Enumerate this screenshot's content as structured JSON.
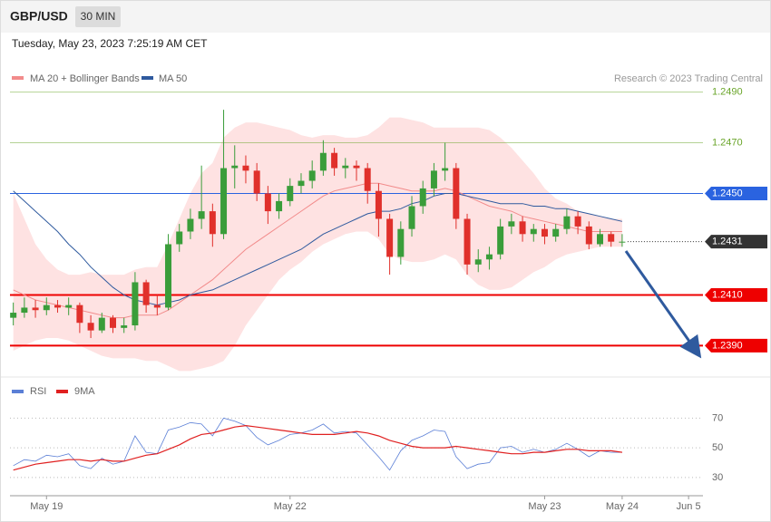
{
  "header": {
    "symbol": "GBP/USD",
    "interval": "30 MIN",
    "timestamp": "Tuesday, May 23, 2023 7:25:19 AM CET"
  },
  "chart_data": [
    {
      "type": "candlestick",
      "credit": "Research © 2023 Trading Central",
      "up_color": "#3a9d3a",
      "down_color": "#e0302b",
      "ylim": [
        1.2378,
        1.2512
      ],
      "candles": [
        [
          1.2401,
          1.2407,
          1.2398,
          1.2403
        ],
        [
          1.2403,
          1.2409,
          1.2401,
          1.2405
        ],
        [
          1.2405,
          1.2408,
          1.2401,
          1.2404
        ],
        [
          1.2404,
          1.2409,
          1.2402,
          1.2406
        ],
        [
          1.2406,
          1.2408,
          1.2403,
          1.2405
        ],
        [
          1.2405,
          1.2409,
          1.2402,
          1.2406
        ],
        [
          1.2406,
          1.2407,
          1.2395,
          1.2399
        ],
        [
          1.2399,
          1.2402,
          1.2393,
          1.2396
        ],
        [
          1.2396,
          1.2403,
          1.2395,
          1.2401
        ],
        [
          1.2401,
          1.2402,
          1.2395,
          1.2397
        ],
        [
          1.2397,
          1.2401,
          1.2395,
          1.2398
        ],
        [
          1.2398,
          1.2419,
          1.2396,
          1.2415
        ],
        [
          1.2415,
          1.2416,
          1.2403,
          1.2406
        ],
        [
          1.2406,
          1.241,
          1.2402,
          1.2405
        ],
        [
          1.2405,
          1.2434,
          1.2404,
          1.243
        ],
        [
          1.243,
          1.2438,
          1.2427,
          1.2435
        ],
        [
          1.2435,
          1.2444,
          1.2432,
          1.244
        ],
        [
          1.244,
          1.2461,
          1.2436,
          1.2443
        ],
        [
          1.2443,
          1.2446,
          1.2429,
          1.2434
        ],
        [
          1.2434,
          1.2483,
          1.2432,
          1.246
        ],
        [
          1.246,
          1.2469,
          1.2452,
          1.2461
        ],
        [
          1.2461,
          1.2465,
          1.2454,
          1.2459
        ],
        [
          1.2459,
          1.2462,
          1.2447,
          1.245
        ],
        [
          1.245,
          1.2453,
          1.2438,
          1.2443
        ],
        [
          1.2443,
          1.245,
          1.244,
          1.2447
        ],
        [
          1.2447,
          1.2456,
          1.2445,
          1.2453
        ],
        [
          1.2453,
          1.2458,
          1.245,
          1.2455
        ],
        [
          1.2455,
          1.2463,
          1.2452,
          1.2459
        ],
        [
          1.2459,
          1.2471,
          1.2457,
          1.2466
        ],
        [
          1.2466,
          1.2468,
          1.2457,
          1.246
        ],
        [
          1.246,
          1.2464,
          1.2456,
          1.2461
        ],
        [
          1.2461,
          1.2463,
          1.2455,
          1.246
        ],
        [
          1.246,
          1.2462,
          1.2446,
          1.2451
        ],
        [
          1.2451,
          1.2454,
          1.2433,
          1.244
        ],
        [
          1.244,
          1.2442,
          1.2418,
          1.2425
        ],
        [
          1.2425,
          1.2439,
          1.2422,
          1.2436
        ],
        [
          1.2436,
          1.2449,
          1.2433,
          1.2445
        ],
        [
          1.2445,
          1.2455,
          1.2442,
          1.2452
        ],
        [
          1.2452,
          1.2462,
          1.2449,
          1.2459
        ],
        [
          1.2459,
          1.247,
          1.2455,
          1.246
        ],
        [
          1.246,
          1.2462,
          1.2436,
          1.244
        ],
        [
          1.244,
          1.2442,
          1.2418,
          1.2422
        ],
        [
          1.2422,
          1.2428,
          1.2419,
          1.2424
        ],
        [
          1.2424,
          1.2429,
          1.242,
          1.2426
        ],
        [
          1.2426,
          1.244,
          1.2424,
          1.2437
        ],
        [
          1.2437,
          1.2442,
          1.2434,
          1.2439
        ],
        [
          1.2439,
          1.2441,
          1.2431,
          1.2434
        ],
        [
          1.2434,
          1.2438,
          1.2431,
          1.2436
        ],
        [
          1.2436,
          1.2438,
          1.243,
          1.2433
        ],
        [
          1.2433,
          1.2438,
          1.2431,
          1.2436
        ],
        [
          1.2436,
          1.2444,
          1.2434,
          1.2441
        ],
        [
          1.2441,
          1.2443,
          1.2434,
          1.2437
        ],
        [
          1.2437,
          1.2439,
          1.2428,
          1.243
        ],
        [
          1.243,
          1.2436,
          1.2429,
          1.2434
        ],
        [
          1.2434,
          1.2435,
          1.2429,
          1.2431
        ],
        [
          1.2431,
          1.2434,
          1.2429,
          1.2431
        ]
      ],
      "series": [
        {
          "name": "MA 20 + Bollinger Bands",
          "color": "#f28b8b",
          "values": [
            1.2412,
            1.241,
            1.2408,
            1.2407,
            1.2406,
            1.2405,
            1.2404,
            1.2403,
            1.2402,
            1.2401,
            1.2401,
            1.2402,
            1.2402,
            1.2402,
            1.2404,
            1.2407,
            1.241,
            1.2413,
            1.2416,
            1.242,
            1.2424,
            1.2428,
            1.2431,
            1.2434,
            1.2437,
            1.244,
            1.2443,
            1.2446,
            1.2449,
            1.2451,
            1.2452,
            1.2453,
            1.2454,
            1.2454,
            1.2453,
            1.2452,
            1.2451,
            1.2451,
            1.2451,
            1.2452,
            1.2451,
            1.2449,
            1.2447,
            1.2445,
            1.2444,
            1.2443,
            1.2441,
            1.244,
            1.2439,
            1.2438,
            1.2437,
            1.2436,
            1.2435,
            1.2435,
            1.2435,
            1.2435
          ]
        },
        {
          "name": "MA 50",
          "color": "#2f5a9e",
          "values": [
            1.2451,
            1.2447,
            1.2443,
            1.2439,
            1.2435,
            1.243,
            1.2426,
            1.2421,
            1.2417,
            1.2413,
            1.241,
            1.2408,
            1.2407,
            1.2406,
            1.2407,
            1.2408,
            1.241,
            1.2411,
            1.2412,
            1.2414,
            1.2416,
            1.2418,
            1.242,
            1.2422,
            1.2424,
            1.2426,
            1.2428,
            1.2431,
            1.2434,
            1.2436,
            1.2438,
            1.244,
            1.2442,
            1.2443,
            1.2443,
            1.2444,
            1.2446,
            1.2447,
            1.2449,
            1.245,
            1.245,
            1.2449,
            1.2448,
            1.2447,
            1.2446,
            1.2446,
            1.2446,
            1.2445,
            1.2445,
            1.2444,
            1.2444,
            1.2443,
            1.2442,
            1.2441,
            1.244,
            1.2439
          ]
        }
      ],
      "bands": {
        "color": "#fdd8d8",
        "upper": [
          1.245,
          1.244,
          1.243,
          1.2424,
          1.242,
          1.2418,
          1.2418,
          1.2419,
          1.2418,
          1.2418,
          1.2418,
          1.242,
          1.2421,
          1.2421,
          1.243,
          1.244,
          1.245,
          1.2458,
          1.2462,
          1.2472,
          1.2476,
          1.2478,
          1.2478,
          1.2477,
          1.2476,
          1.2475,
          1.2473,
          1.2472,
          1.2473,
          1.2473,
          1.2472,
          1.2472,
          1.2473,
          1.2476,
          1.248,
          1.248,
          1.2479,
          1.2478,
          1.2476,
          1.2476,
          1.2476,
          1.2476,
          1.2476,
          1.2475,
          1.2472,
          1.2468,
          1.2463,
          1.2458,
          1.2452,
          1.2448,
          1.2446,
          1.2443,
          1.2442,
          1.2441,
          1.244,
          1.244
        ],
        "lower": [
          1.2388,
          1.239,
          1.2392,
          1.2393,
          1.2393,
          1.2392,
          1.239,
          1.2388,
          1.2386,
          1.2385,
          1.2385,
          1.2385,
          1.2384,
          1.2384,
          1.2382,
          1.238,
          1.238,
          1.2381,
          1.2382,
          1.2384,
          1.239,
          1.2398,
          1.2404,
          1.241,
          1.2416,
          1.242,
          1.2423,
          1.2427,
          1.243,
          1.2432,
          1.2434,
          1.2435,
          1.2435,
          1.2432,
          1.2426,
          1.2424,
          1.2423,
          1.2423,
          1.2424,
          1.2426,
          1.2424,
          1.2418,
          1.2414,
          1.2412,
          1.2412,
          1.2413,
          1.2416,
          1.2419,
          1.2421,
          1.2424,
          1.2426,
          1.2427,
          1.2428,
          1.2429,
          1.2429,
          1.2429
        ]
      },
      "levels": [
        {
          "value": 1.249,
          "label": "1.2490",
          "color": "#6aa52a",
          "line": "thin",
          "box": false
        },
        {
          "value": 1.247,
          "label": "1.2470",
          "color": "#6aa52a",
          "line": "thin",
          "box": false
        },
        {
          "value": 1.245,
          "label": "1.2450",
          "color": "#2a63e0",
          "line": "thin",
          "box": true
        },
        {
          "value": 1.2431,
          "label": "1.2431",
          "color": "#333333",
          "line": "dotted",
          "box": true
        },
        {
          "value": 1.241,
          "label": "1.2410",
          "color": "#ee0000",
          "line": "thick",
          "box": true
        },
        {
          "value": 1.239,
          "label": "1.2390",
          "color": "#ee0000",
          "line": "thick",
          "box": true
        }
      ]
    },
    {
      "type": "line",
      "ylim": [
        22,
        80
      ],
      "yticks": [
        30,
        50,
        70
      ],
      "xlim": [
        -0.3,
        62.3
      ],
      "xticks": [
        {
          "value": 3,
          "label": "May 19"
        },
        {
          "value": 25,
          "label": "May 22"
        },
        {
          "value": 48,
          "label": "May 23"
        },
        {
          "value": 55,
          "label": "May 24"
        },
        {
          "value": 61,
          "label": "Jun 5"
        }
      ],
      "series": [
        {
          "name": "RSI",
          "color": "#5b7fd6",
          "values": [
            38,
            42,
            41,
            45,
            44,
            46,
            38,
            36,
            43,
            39,
            41,
            58,
            47,
            46,
            62,
            64,
            67,
            66,
            58,
            70,
            68,
            65,
            57,
            52,
            55,
            59,
            60,
            62,
            66,
            60,
            61,
            60,
            52,
            44,
            35,
            48,
            55,
            58,
            62,
            61,
            44,
            36,
            39,
            40,
            50,
            51,
            47,
            49,
            47,
            49,
            53,
            49,
            44,
            48,
            47,
            47
          ]
        },
        {
          "name": "9MA",
          "color": "#e02020",
          "values": [
            35,
            37,
            39,
            40,
            41,
            42,
            42,
            41,
            42,
            41,
            41,
            43,
            45,
            46,
            49,
            52,
            56,
            59,
            60,
            62,
            64,
            65,
            64,
            63,
            62,
            61,
            60,
            59,
            59,
            59,
            60,
            61,
            60,
            58,
            55,
            53,
            51,
            50,
            50,
            50,
            51,
            50,
            49,
            48,
            47,
            46,
            46,
            47,
            47,
            48,
            49,
            49,
            48,
            48,
            48,
            47
          ]
        }
      ]
    }
  ]
}
